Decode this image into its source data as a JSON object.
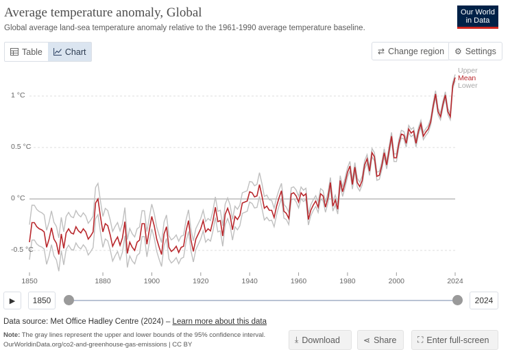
{
  "header": {
    "title": "Average temperature anomaly, Global",
    "subtitle": "Global average land-sea temperature anomaly relative to the 1961-1990 average temperature baseline.",
    "logo_line1": "Our World",
    "logo_line2": "in Data"
  },
  "toolbar": {
    "tab_table": "Table",
    "tab_chart": "Chart",
    "change_region": "Change region",
    "settings": "Settings"
  },
  "timeline": {
    "start_year": "1850",
    "end_year": "2024"
  },
  "footer": {
    "source_prefix": "Data source:",
    "source_name": "Met Office Hadley Centre (2024)",
    "source_sep": " – ",
    "learn_more": "Learn more about this data",
    "note_prefix": "Note:",
    "note_text": " The gray lines represent the upper and lower bounds of the 95% confidence interval.",
    "url": "OurWorldinData.org/co2-and-greenhouse-gas-emissions | CC BY",
    "download": "Download",
    "share": "Share",
    "fullscreen": "Enter full-screen"
  },
  "colors": {
    "mean": "#b8262b",
    "bounds": "#bfbfbf",
    "brand": "#002147",
    "brand_accent": "#ce261e"
  },
  "chart_data": {
    "type": "line",
    "ylim": [
      -0.75,
      1.3
    ],
    "xlim": [
      1850,
      2024
    ],
    "yticks": [
      {
        "v": 1,
        "label": "1 °C"
      },
      {
        "v": 0.5,
        "label": "0.5 °C"
      },
      {
        "v": 0,
        "label": "0 °C"
      },
      {
        "v": -0.5,
        "label": "-0.5 °C"
      }
    ],
    "xticks": [
      1850,
      1880,
      1900,
      1920,
      1940,
      1960,
      1980,
      2000,
      2024
    ],
    "grid": true,
    "legend_placement": "right-end",
    "ci_halfwidth": [
      [
        1850,
        0.17
      ],
      [
        1880,
        0.15
      ],
      [
        1900,
        0.12
      ],
      [
        1920,
        0.1
      ],
      [
        1940,
        0.1
      ],
      [
        1945,
        0.12
      ],
      [
        1955,
        0.06
      ],
      [
        1970,
        0.05
      ],
      [
        1990,
        0.04
      ],
      [
        2024,
        0.03
      ]
    ],
    "series": [
      {
        "name": "Mean",
        "x": [
          1850,
          1851,
          1852,
          1853,
          1854,
          1855,
          1856,
          1857,
          1858,
          1859,
          1860,
          1861,
          1862,
          1863,
          1864,
          1865,
          1866,
          1867,
          1868,
          1869,
          1870,
          1871,
          1872,
          1873,
          1874,
          1875,
          1876,
          1877,
          1878,
          1879,
          1880,
          1881,
          1882,
          1883,
          1884,
          1885,
          1886,
          1887,
          1888,
          1889,
          1890,
          1891,
          1892,
          1893,
          1894,
          1895,
          1896,
          1897,
          1898,
          1899,
          1900,
          1901,
          1902,
          1903,
          1904,
          1905,
          1906,
          1907,
          1908,
          1909,
          1910,
          1911,
          1912,
          1913,
          1914,
          1915,
          1916,
          1917,
          1918,
          1919,
          1920,
          1921,
          1922,
          1923,
          1924,
          1925,
          1926,
          1927,
          1928,
          1929,
          1930,
          1931,
          1932,
          1933,
          1934,
          1935,
          1936,
          1937,
          1938,
          1939,
          1940,
          1941,
          1942,
          1943,
          1944,
          1945,
          1946,
          1947,
          1948,
          1949,
          1950,
          1951,
          1952,
          1953,
          1954,
          1955,
          1956,
          1957,
          1958,
          1959,
          1960,
          1961,
          1962,
          1963,
          1964,
          1965,
          1966,
          1967,
          1968,
          1969,
          1970,
          1971,
          1972,
          1973,
          1974,
          1975,
          1976,
          1977,
          1978,
          1979,
          1980,
          1981,
          1982,
          1983,
          1984,
          1985,
          1986,
          1987,
          1988,
          1989,
          1990,
          1991,
          1992,
          1993,
          1994,
          1995,
          1996,
          1997,
          1998,
          1999,
          2000,
          2001,
          2002,
          2003,
          2004,
          2005,
          2006,
          2007,
          2008,
          2009,
          2010,
          2011,
          2012,
          2013,
          2014,
          2015,
          2016,
          2017,
          2018,
          2019,
          2020,
          2021,
          2022,
          2023,
          2024
        ],
        "values": [
          -0.42,
          -0.23,
          -0.23,
          -0.27,
          -0.29,
          -0.3,
          -0.32,
          -0.47,
          -0.39,
          -0.28,
          -0.39,
          -0.43,
          -0.54,
          -0.34,
          -0.48,
          -0.33,
          -0.29,
          -0.33,
          -0.34,
          -0.27,
          -0.31,
          -0.33,
          -0.29,
          -0.32,
          -0.39,
          -0.36,
          -0.32,
          -0.04,
          0.0,
          -0.17,
          -0.32,
          -0.24,
          -0.26,
          -0.35,
          -0.46,
          -0.41,
          -0.37,
          -0.45,
          -0.38,
          -0.22,
          -0.53,
          -0.42,
          -0.47,
          -0.5,
          -0.42,
          -0.4,
          -0.24,
          -0.24,
          -0.44,
          -0.3,
          -0.17,
          -0.26,
          -0.39,
          -0.47,
          -0.54,
          -0.34,
          -0.27,
          -0.47,
          -0.51,
          -0.49,
          -0.46,
          -0.52,
          -0.47,
          -0.46,
          -0.31,
          -0.21,
          -0.4,
          -0.51,
          -0.39,
          -0.34,
          -0.29,
          -0.21,
          -0.32,
          -0.29,
          -0.31,
          -0.21,
          -0.08,
          -0.22,
          -0.21,
          -0.36,
          -0.15,
          -0.09,
          -0.16,
          -0.3,
          -0.17,
          -0.2,
          -0.16,
          -0.04,
          -0.03,
          -0.02,
          0.07,
          0.06,
          0.02,
          0.03,
          0.14,
          0.03,
          -0.09,
          -0.07,
          -0.11,
          -0.11,
          -0.18,
          -0.07,
          0.01,
          0.08,
          -0.12,
          -0.14,
          -0.19,
          0.05,
          0.06,
          0.03,
          -0.03,
          0.06,
          0.03,
          0.05,
          -0.2,
          -0.11,
          -0.06,
          -0.02,
          -0.08,
          0.05,
          0.03,
          -0.08,
          0.01,
          0.16,
          -0.07,
          -0.01,
          -0.1,
          0.18,
          0.07,
          0.16,
          0.26,
          0.32,
          0.14,
          0.31,
          0.16,
          0.12,
          0.18,
          0.33,
          0.39,
          0.27,
          0.45,
          0.41,
          0.22,
          0.23,
          0.32,
          0.45,
          0.33,
          0.47,
          0.61,
          0.4,
          0.4,
          0.54,
          0.63,
          0.62,
          0.54,
          0.68,
          0.64,
          0.66,
          0.54,
          0.66,
          0.73,
          0.61,
          0.65,
          0.68,
          0.75,
          0.9,
          1.02,
          0.85,
          0.8,
          0.92,
          1.01,
          0.85,
          0.8,
          1.1,
          1.18
        ]
      }
    ]
  }
}
